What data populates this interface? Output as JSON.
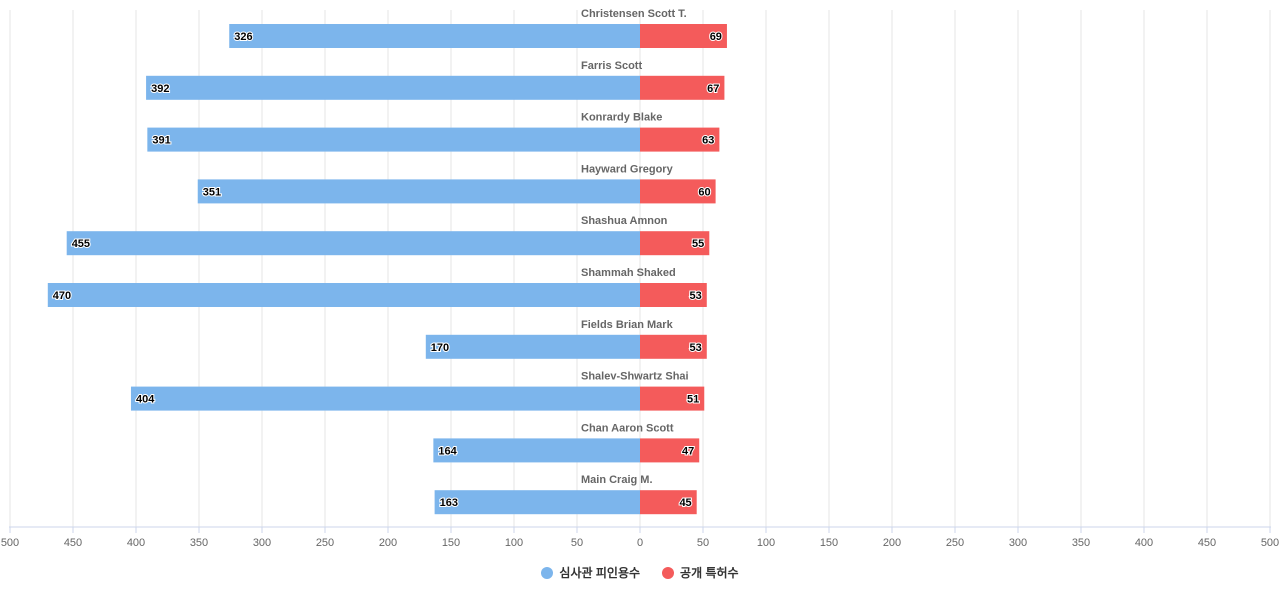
{
  "chart_data": {
    "type": "bar",
    "orientation": "horizontal-diverging",
    "categories": [
      "Christensen Scott T.",
      "Farris Scott",
      "Konrardy Blake",
      "Hayward Gregory",
      "Shashua Amnon",
      "Shammah Shaked",
      "Fields Brian Mark",
      "Shalev-Shwartz Shai",
      "Chan Aaron Scott",
      "Main Craig M."
    ],
    "series": [
      {
        "name": "심사관 피인용수",
        "color": "#7cb5ec",
        "side": "left",
        "values": [
          326,
          392,
          391,
          351,
          455,
          470,
          170,
          404,
          164,
          163
        ]
      },
      {
        "name": "공개 특허수",
        "color": "#f45b5b",
        "side": "right",
        "values": [
          69,
          67,
          63,
          60,
          55,
          53,
          53,
          51,
          47,
          45
        ]
      }
    ],
    "xlim": [
      -500,
      500
    ],
    "x_tick_labels": [
      "500",
      "450",
      "400",
      "350",
      "300",
      "250",
      "200",
      "150",
      "100",
      "50",
      "0",
      "50",
      "100",
      "150",
      "200",
      "250",
      "300",
      "350",
      "400",
      "450",
      "500"
    ],
    "grid": true,
    "data_labels": true,
    "legend": "bottom-center"
  }
}
